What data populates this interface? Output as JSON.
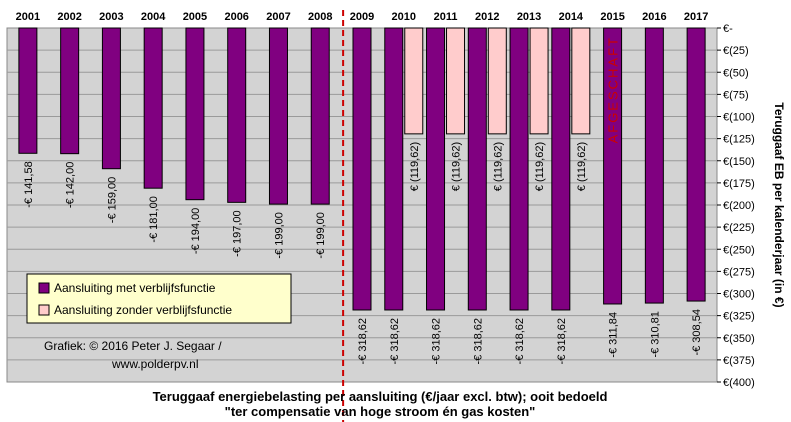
{
  "chart_data": {
    "type": "bar",
    "categories": [
      "2001",
      "2002",
      "2003",
      "2004",
      "2005",
      "2006",
      "2007",
      "2008",
      "2009",
      "2010",
      "2011",
      "2012",
      "2013",
      "2014",
      "2015",
      "2016",
      "2017"
    ],
    "series": [
      {
        "name": "Aansluiting met verblijfsfunctie",
        "color": "#800080",
        "values": [
          -141.58,
          -142.0,
          -159.0,
          -181.0,
          -194.0,
          -197.0,
          -199.0,
          -199.0,
          -318.62,
          -318.62,
          -318.62,
          -318.62,
          -318.62,
          -318.62,
          -311.84,
          -310.81,
          -308.54
        ],
        "labels": [
          "-€ 141,58",
          "-€ 142,00",
          "-€ 159,00",
          "-€ 181,00",
          "-€ 194,00",
          "-€ 197,00",
          "-€ 199,00",
          "-€ 199,00",
          "-€ 318,62",
          "-€ 318,62",
          "-€ 318,62",
          "-€ 318,62",
          "-€ 318,62",
          "-€ 318,62",
          "-€ 311,84",
          "-€ 310,81",
          "-€ 308,54"
        ]
      },
      {
        "name": "Aansluiting zonder verblijfsfunctie",
        "color": "#ffcccc",
        "values": [
          null,
          null,
          null,
          null,
          null,
          null,
          null,
          null,
          null,
          -119.62,
          -119.62,
          -119.62,
          -119.62,
          -119.62,
          null,
          null,
          null
        ],
        "labels": [
          "",
          "",
          "",
          "",
          "",
          "",
          "",
          "",
          "",
          "€ (119,62)",
          "€ (119,62)",
          "€ (119,62)",
          "€ (119,62)",
          "€ (119,62)",
          "",
          "",
          ""
        ]
      }
    ],
    "ylim": [
      -400,
      0
    ],
    "yticks": [
      0,
      -25,
      -50,
      -75,
      -100,
      -125,
      -150,
      -175,
      -200,
      -225,
      -250,
      -275,
      -300,
      -325,
      -350,
      -375,
      -400
    ],
    "ytick_labels": [
      "€-",
      "€(25)",
      "€(50)",
      "€(75)",
      "€(100)",
      "€(125)",
      "€(150)",
      "€(175)",
      "€(200)",
      "€(225)",
      "€(250)",
      "€(275)",
      "€(300)",
      "€(325)",
      "€(350)",
      "€(375)",
      "€(400)"
    ],
    "ylabel": "Teruggaaf EB per kalenderjaar (in €)",
    "xlabel": "",
    "title_lines": [
      "Teruggaaf energiebelasting  per aansluiting (€/jaar excl. btw); ooit bedoeld",
      "\"ter compensatie van hoge stroom én gas kosten\""
    ],
    "annotation_vertical": "AFGESCHAFT",
    "credit_lines": [
      "Grafiek:  © 2016 Peter J. Segaar /",
      "www.polderpv.nl"
    ],
    "divider_after_category": "2008",
    "grid": true,
    "legend_position": "bottom-left",
    "colors": {
      "plot_bg": "#d3d3d3",
      "divider": "#cc0000",
      "annotation": "#cc0000"
    }
  }
}
